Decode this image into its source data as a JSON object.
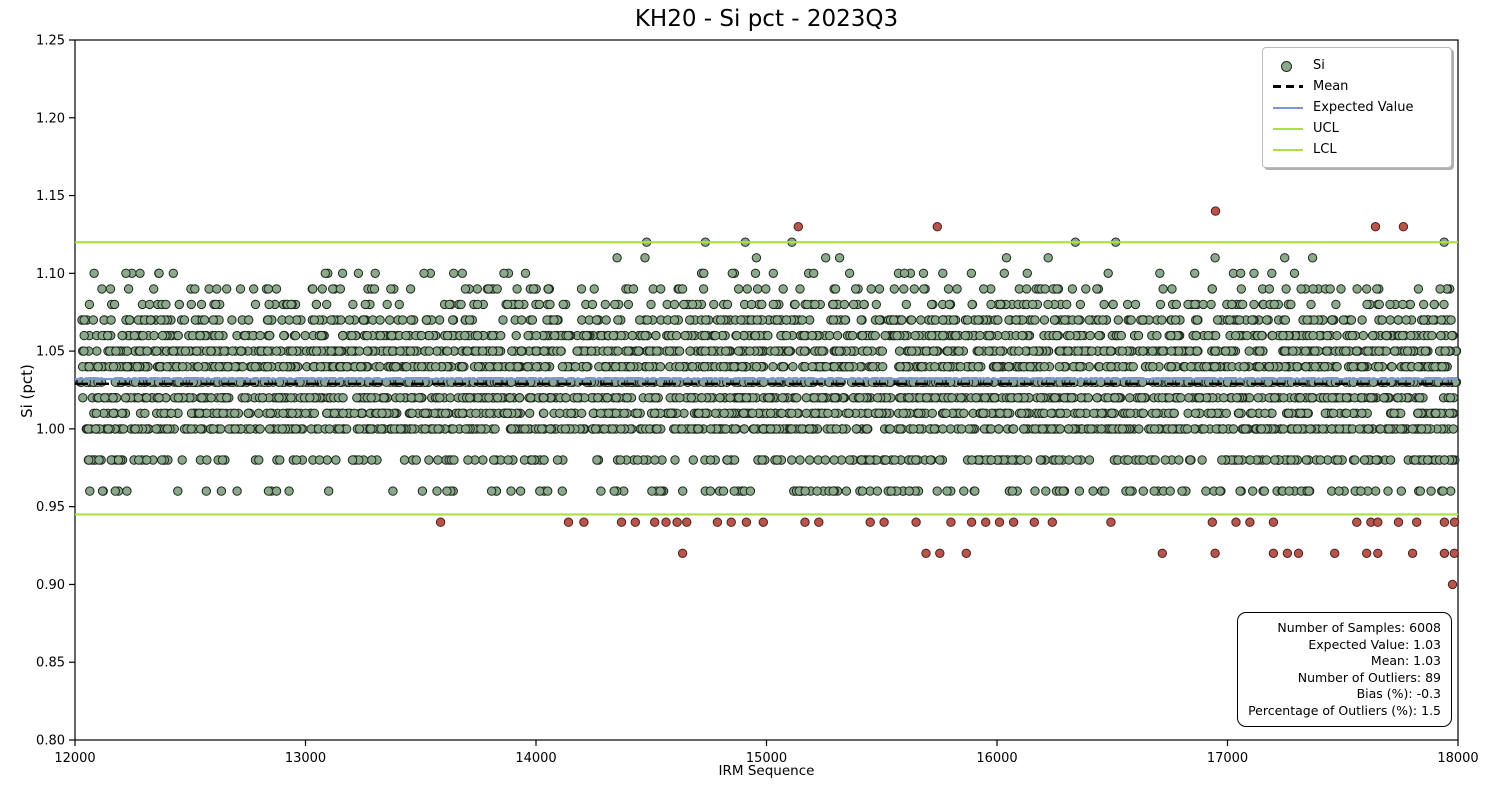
{
  "chart_data": {
    "type": "scatter",
    "title": "KH20 - Si pct - 2023Q3",
    "xlabel": "IRM Sequence",
    "ylabel": "Si (pct)",
    "xlim": [
      12000,
      18000
    ],
    "ylim": [
      0.8,
      1.25
    ],
    "grid": false,
    "x_ticks": [
      {
        "v": 12000,
        "label": "12000"
      },
      {
        "v": 13000,
        "label": "13000"
      },
      {
        "v": 14000,
        "label": "14000"
      },
      {
        "v": 15000,
        "label": "15000"
      },
      {
        "v": 16000,
        "label": "16000"
      },
      {
        "v": 17000,
        "label": "17000"
      },
      {
        "v": 18000,
        "label": "18000"
      }
    ],
    "y_ticks": [
      {
        "v": 0.8,
        "label": "0.80"
      },
      {
        "v": 0.85,
        "label": "0.85"
      },
      {
        "v": 0.9,
        "label": "0.90"
      },
      {
        "v": 0.95,
        "label": "0.95"
      },
      {
        "v": 1.0,
        "label": "1.00"
      },
      {
        "v": 1.05,
        "label": "1.05"
      },
      {
        "v": 1.1,
        "label": "1.10"
      },
      {
        "v": 1.15,
        "label": "1.15"
      },
      {
        "v": 1.2,
        "label": "1.20"
      },
      {
        "v": 1.25,
        "label": "1.25"
      }
    ],
    "lines": {
      "mean": 1.029,
      "expected_value": 1.032,
      "ucl": 1.12,
      "lcl": 0.945
    },
    "point_seed": 42,
    "bands": [
      {
        "value": 1.1,
        "segments": [
          {
            "x0": 12060,
            "x1": 17990,
            "count": 44
          }
        ]
      },
      {
        "value": 1.09,
        "segments": [
          {
            "x0": 12060,
            "x1": 17990,
            "count": 115
          }
        ]
      },
      {
        "value": 1.08,
        "segments": [
          {
            "x0": 12040,
            "x1": 17990,
            "count": 170
          }
        ]
      },
      {
        "value": 1.07,
        "segments": [
          {
            "x0": 12030,
            "x1": 17995,
            "count": 310
          }
        ]
      },
      {
        "value": 1.06,
        "segments": [
          {
            "x0": 12030,
            "x1": 17995,
            "count": 390
          }
        ]
      },
      {
        "value": 1.05,
        "segments": [
          {
            "x0": 12020,
            "x1": 17995,
            "count": 560
          }
        ]
      },
      {
        "value": 1.04,
        "segments": [
          {
            "x0": 12020,
            "x1": 17995,
            "count": 580
          }
        ]
      },
      {
        "value": 1.03,
        "segments": [
          {
            "x0": 12020,
            "x1": 17995,
            "count": 780
          }
        ]
      },
      {
        "value": 1.02,
        "segments": [
          {
            "x0": 12020,
            "x1": 17995,
            "count": 580
          }
        ]
      },
      {
        "value": 1.01,
        "segments": [
          {
            "x0": 12020,
            "x1": 17995,
            "count": 440
          }
        ]
      },
      {
        "value": 1.0,
        "segments": [
          {
            "x0": 12020,
            "x1": 17995,
            "count": 560
          }
        ]
      },
      {
        "value": 0.98,
        "segments": [
          {
            "x0": 12040,
            "x1": 14900,
            "count": 95
          },
          {
            "x0": 14900,
            "x1": 17995,
            "count": 180
          }
        ]
      },
      {
        "value": 0.96,
        "segments": [
          {
            "x0": 12060,
            "x1": 14900,
            "count": 48
          },
          {
            "x0": 14900,
            "x1": 17995,
            "count": 100
          }
        ]
      }
    ],
    "green_points": [
      [
        14480,
        1.12
      ],
      [
        14735,
        1.12
      ],
      [
        14908,
        1.12
      ],
      [
        15110,
        1.12
      ],
      [
        16340,
        1.12
      ],
      [
        16515,
        1.12
      ],
      [
        17940,
        1.12
      ],
      [
        14352,
        1.11
      ],
      [
        14473,
        1.11
      ],
      [
        14956,
        1.11
      ],
      [
        15257,
        1.11
      ],
      [
        15317,
        1.11
      ],
      [
        16041,
        1.11
      ],
      [
        16222,
        1.11
      ],
      [
        16946,
        1.11
      ],
      [
        17248,
        1.11
      ],
      [
        17369,
        1.11
      ]
    ],
    "outlier_points": [
      [
        16948,
        1.14
      ],
      [
        15138,
        1.13
      ],
      [
        15741,
        1.13
      ],
      [
        17642,
        1.13
      ],
      [
        17763,
        1.13
      ],
      [
        13586,
        0.94
      ],
      [
        14141,
        0.94
      ],
      [
        14208,
        0.94
      ],
      [
        14371,
        0.94
      ],
      [
        14431,
        0.94
      ],
      [
        14515,
        0.94
      ],
      [
        14564,
        0.94
      ],
      [
        14612,
        0.94
      ],
      [
        14654,
        0.94
      ],
      [
        14787,
        0.94
      ],
      [
        14847,
        0.94
      ],
      [
        14913,
        0.94
      ],
      [
        14986,
        0.94
      ],
      [
        15167,
        0.94
      ],
      [
        15227,
        0.94
      ],
      [
        15450,
        0.94
      ],
      [
        15510,
        0.94
      ],
      [
        15649,
        0.94
      ],
      [
        15800,
        0.94
      ],
      [
        15890,
        0.94
      ],
      [
        15951,
        0.94
      ],
      [
        16011,
        0.94
      ],
      [
        16072,
        0.94
      ],
      [
        16162,
        0.94
      ],
      [
        16240,
        0.94
      ],
      [
        16494,
        0.94
      ],
      [
        16934,
        0.94
      ],
      [
        17037,
        0.94
      ],
      [
        17097,
        0.94
      ],
      [
        17199,
        0.94
      ],
      [
        17561,
        0.94
      ],
      [
        17622,
        0.94
      ],
      [
        17652,
        0.94
      ],
      [
        17742,
        0.94
      ],
      [
        17821,
        0.94
      ],
      [
        17941,
        0.94
      ],
      [
        17985,
        0.94
      ],
      [
        14636,
        0.92
      ],
      [
        15692,
        0.92
      ],
      [
        15752,
        0.92
      ],
      [
        15867,
        0.92
      ],
      [
        16717,
        0.92
      ],
      [
        16946,
        0.92
      ],
      [
        17199,
        0.92
      ],
      [
        17260,
        0.92
      ],
      [
        17308,
        0.92
      ],
      [
        17465,
        0.92
      ],
      [
        17604,
        0.92
      ],
      [
        17652,
        0.92
      ],
      [
        17803,
        0.92
      ],
      [
        17941,
        0.92
      ],
      [
        17984,
        0.92
      ],
      [
        17976,
        0.9
      ]
    ],
    "legend": {
      "position": "upper right",
      "items": [
        {
          "label": "Si",
          "marker": "dot",
          "color": "#8CA98C",
          "edge": "#1E281E"
        },
        {
          "label": "Mean",
          "marker": "dashed",
          "color": "#000000"
        },
        {
          "label": "Expected Value",
          "marker": "line",
          "color": "#7897DD"
        },
        {
          "label": "UCL",
          "marker": "line",
          "color": "#ACE23E"
        },
        {
          "label": "LCL",
          "marker": "line",
          "color": "#ACE23E"
        }
      ]
    },
    "stats_box": {
      "lines": [
        "Number of Samples: 6008",
        "Expected Value: 1.03",
        "Mean: 1.03",
        "Number of Outliers: 89",
        "Bias (%): -0.3",
        "Percentage of Outliers (%): 1.5"
      ]
    },
    "colors": {
      "si_fill": "#8CA98C",
      "si_edge": "#1E281E",
      "outlier_fill": "#B9544C",
      "outlier_edge": "#47211B",
      "mean": "#000000",
      "expected_value": "#7897DD",
      "ucl": "#ACE23E",
      "lcl": "#ACE23E",
      "spine": "#000000",
      "background": "#FFFFFF"
    }
  }
}
